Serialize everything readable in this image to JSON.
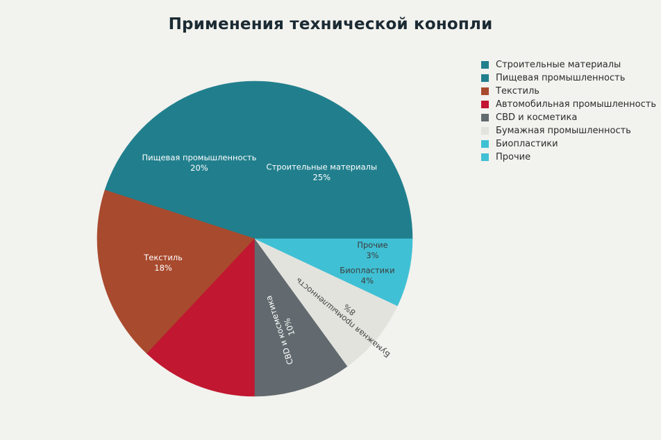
{
  "chart_data": {
    "type": "pie",
    "title": "Применения технической конопли",
    "slices": [
      {
        "label": "Строительные материалы",
        "value": 25,
        "pct_label": "25%",
        "color": "#217f8d",
        "label_color": "#ffffff",
        "show_label": true
      },
      {
        "label": "Пищевая промышленность",
        "value": 20,
        "pct_label": "20%",
        "color": "#217f8d",
        "label_color": "#ffffff",
        "show_label": true
      },
      {
        "label": "Текстиль",
        "value": 18,
        "pct_label": "18%",
        "color": "#a84a2e",
        "label_color": "#ffffff",
        "show_label": true
      },
      {
        "label": "Автомобильная промышленность",
        "value": 12,
        "pct_label": "12%",
        "color": "#c11730",
        "label_color": "#ffffff",
        "show_label": false
      },
      {
        "label": "CBD и косметика",
        "value": 10,
        "pct_label": "10%",
        "color": "#626a6f",
        "label_color": "#ffffff",
        "show_label": true
      },
      {
        "label": "Бумажная промышленность",
        "value": 8,
        "pct_label": "8%",
        "color": "#e3e3de",
        "label_color": "#444444",
        "show_label": true
      },
      {
        "label": "Биопластики",
        "value": 4,
        "pct_label": "4%",
        "color": "#40c0d4",
        "label_color": "#3a3a3a",
        "show_label": true
      },
      {
        "label": "Прочие",
        "value": 3,
        "pct_label": "3%",
        "color": "#40c0d4",
        "label_color": "#3a3a3a",
        "show_label": true
      }
    ],
    "legend_position": "top-right"
  }
}
